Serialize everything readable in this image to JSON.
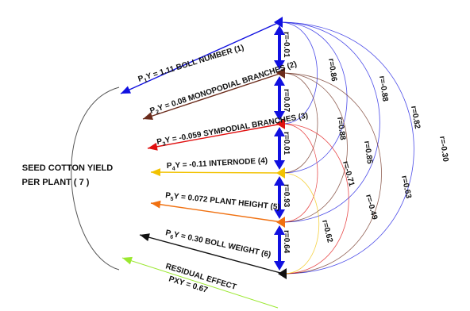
{
  "title_lines": [
    "SEED COTTON YIELD",
    "PER PLANT ( 7 )"
  ],
  "paths": [
    {
      "prefix": "P",
      "sub": "1",
      "rest": "Y = 1.11  BOLL NUMBER (1)",
      "color": "#1010e0"
    },
    {
      "prefix": "P",
      "sub": "2",
      "rest": "Y = 0.08  MONOPODIAL  BRANCHES (2)",
      "color": "#6b2b1b"
    },
    {
      "prefix": "P",
      "sub": "3",
      "rest": "Y = -0.059  SYMPODIAL  BRANCHES (3)",
      "color": "#e01010"
    },
    {
      "prefix": "P",
      "sub": "4",
      "rest": "Y = -0.11  INTERNODE (4)",
      "color": "#f2c200"
    },
    {
      "prefix": "P",
      "sub": "5",
      "rest": "Y = 0.072  PLANT HEIGHT (5)",
      "color": "#f07010"
    },
    {
      "prefix": "P",
      "sub": "6",
      "rest": "Y = 0.30  BOLL WEIGHT (6)",
      "color": "#111111"
    }
  ],
  "residual": {
    "line1": "RESIDUAL  EFFECT",
    "line2": "PXY = 0.67",
    "color": "#9be830"
  },
  "adjacent_r": [
    "r=-0.01",
    "r=0.07",
    "r=0.01",
    "r=0.93",
    "r=0.64"
  ],
  "arc_r": [
    "r=0.86",
    "r=0.88",
    "r=0.85",
    "r=-0.71",
    "r=-0.49",
    "r=0.62",
    "r=-0.88",
    "r=0.63",
    "r=0.82",
    "r=-0.30"
  ]
}
